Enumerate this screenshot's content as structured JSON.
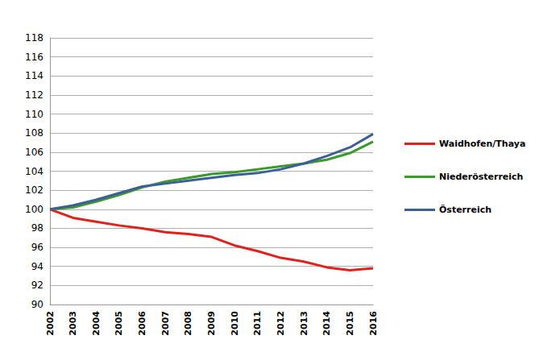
{
  "chart_data": {
    "type": "line",
    "categories": [
      "2002",
      "2003",
      "2004",
      "2005",
      "2006",
      "2007",
      "2008",
      "2009",
      "2010",
      "2011",
      "2012",
      "2013",
      "2014",
      "2015",
      "2016"
    ],
    "series": [
      {
        "name": "Waidhofen/Thaya",
        "color": "#e3201b",
        "values": [
          100,
          99.1,
          98.7,
          98.3,
          98.0,
          97.6,
          97.4,
          97.1,
          96.2,
          95.6,
          94.9,
          94.5,
          93.9,
          93.6,
          93.8
        ]
      },
      {
        "name": "Niederösterreich",
        "color": "#3a9a2a",
        "values": [
          100,
          100.2,
          100.8,
          101.5,
          102.3,
          102.9,
          103.3,
          103.7,
          103.9,
          104.2,
          104.5,
          104.8,
          105.2,
          105.9,
          107.1
        ]
      },
      {
        "name": "Österreich",
        "color": "#3c5f97",
        "values": [
          100,
          100.4,
          101.0,
          101.7,
          102.4,
          102.7,
          103.0,
          103.3,
          103.6,
          103.8,
          104.2,
          104.8,
          105.6,
          106.5,
          107.9
        ]
      }
    ],
    "ylim": [
      90,
      118
    ],
    "yticks": [
      90,
      92,
      94,
      96,
      98,
      100,
      102,
      104,
      106,
      108,
      110,
      112,
      114,
      116,
      118
    ],
    "grid": true,
    "legend": "right"
  }
}
